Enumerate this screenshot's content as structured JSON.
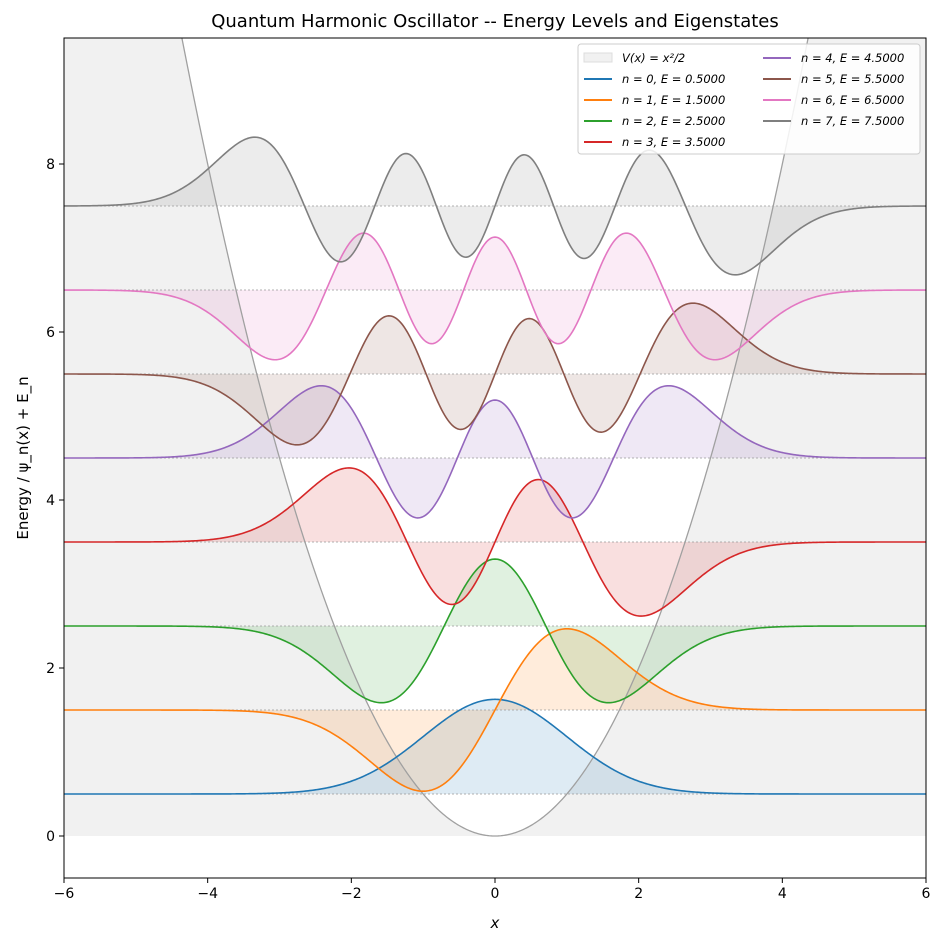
{
  "chart_data": {
    "type": "line",
    "title": "Quantum Harmonic Oscillator -- Energy Levels and Eigenstates",
    "xlabel": "x",
    "ylabel": "Energy / ψ_n(x) + E_n",
    "xlim": [
      -6,
      6
    ],
    "ylim": [
      -0.5,
      9.5
    ],
    "xticks": [
      -6,
      -4,
      -2,
      0,
      2,
      4,
      6
    ],
    "yticks": [
      0,
      2,
      4,
      6,
      8
    ],
    "grid": false,
    "legend_placement": "upper-right",
    "potential": {
      "label": "V(x) = x²/2",
      "formula": "x^2/2",
      "color": "#a0a0a0",
      "fill": "#f1f1f1"
    },
    "wavefunction_scale": 1.5,
    "series": [
      {
        "name": "n = 0, E = 0.5000",
        "n": 0,
        "E": 0.5,
        "sign": 1,
        "color": "#1f77b4"
      },
      {
        "name": "n = 1, E = 1.5000",
        "n": 1,
        "E": 1.5,
        "sign": 1,
        "color": "#ff7f0e"
      },
      {
        "name": "n = 2, E = 2.5000",
        "n": 2,
        "E": 2.5,
        "sign": -1,
        "color": "#2ca02c"
      },
      {
        "name": "n = 3, E = 3.5000",
        "n": 3,
        "E": 3.5,
        "sign": -1,
        "color": "#d62728"
      },
      {
        "name": "n = 4, E = 4.5000",
        "n": 4,
        "E": 4.5,
        "sign": 1,
        "color": "#9467bd"
      },
      {
        "name": "n = 5, E = 5.5000",
        "n": 5,
        "E": 5.5,
        "sign": 1,
        "color": "#8c564b"
      },
      {
        "name": "n = 6, E = 6.5000",
        "n": 6,
        "E": 6.5,
        "sign": -1,
        "color": "#e377c2"
      },
      {
        "name": "n = 7, E = 7.5000",
        "n": 7,
        "E": 7.5,
        "sign": -1,
        "color": "#7f7f7f"
      }
    ]
  }
}
